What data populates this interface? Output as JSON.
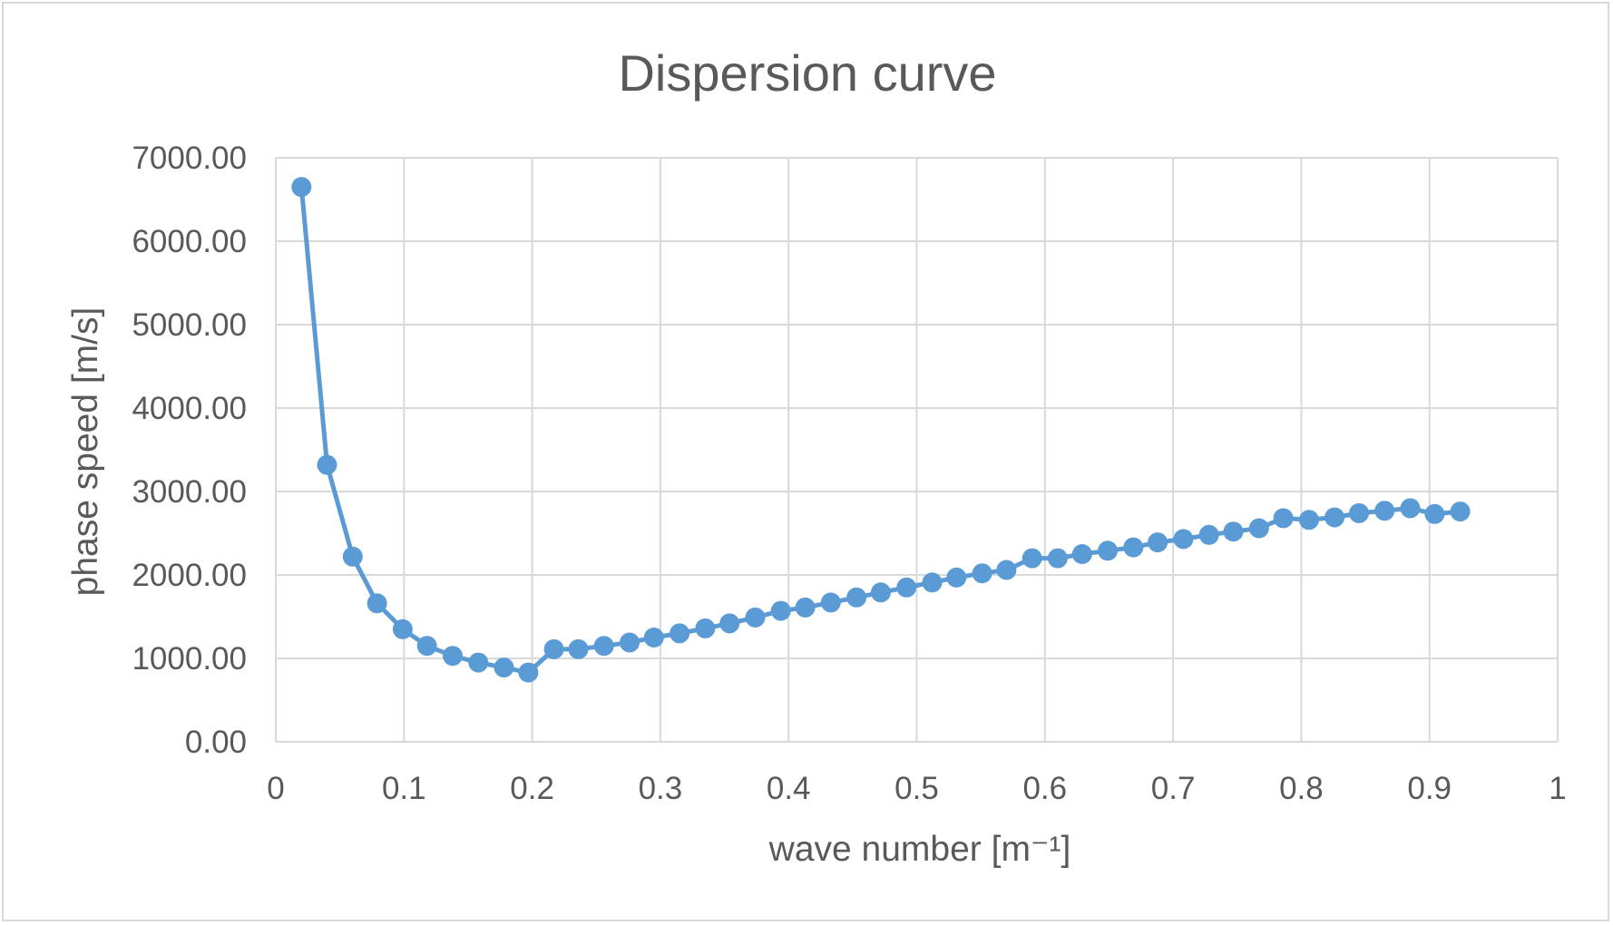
{
  "chart_data": {
    "type": "line",
    "title": "Dispersion curve",
    "xlabel": "wave number [m⁻¹]",
    "ylabel": "phase speed [m/s]",
    "xlim": [
      0,
      1
    ],
    "ylim": [
      0,
      7000
    ],
    "xticks": [
      "0",
      "0.1",
      "0.2",
      "0.3",
      "0.4",
      "0.5",
      "0.6",
      "0.7",
      "0.8",
      "0.9",
      "1"
    ],
    "yticks": [
      "0.00",
      "1000.00",
      "2000.00",
      "3000.00",
      "4000.00",
      "5000.00",
      "6000.00",
      "7000.00"
    ],
    "grid": true,
    "legend": "none",
    "marker": "circle",
    "color": "#5b9bd5",
    "series": [
      {
        "x": [
          0.02,
          0.04,
          0.06,
          0.079,
          0.099,
          0.118,
          0.138,
          0.158,
          0.178,
          0.197,
          0.217,
          0.236,
          0.256,
          0.276,
          0.295,
          0.315,
          0.335,
          0.354,
          0.374,
          0.394,
          0.413,
          0.433,
          0.453,
          0.472,
          0.492,
          0.512,
          0.531,
          0.551,
          0.57,
          0.59,
          0.61,
          0.629,
          0.649,
          0.669,
          0.688,
          0.708,
          0.728,
          0.747,
          0.767,
          0.786,
          0.806,
          0.826,
          0.845,
          0.865,
          0.885,
          0.904,
          0.924
        ],
        "y": [
          6650,
          3320,
          2220,
          1660,
          1350,
          1150,
          1030,
          950,
          890,
          830,
          1110,
          1110,
          1150,
          1190,
          1250,
          1300,
          1360,
          1420,
          1490,
          1570,
          1610,
          1670,
          1730,
          1790,
          1850,
          1910,
          1970,
          2020,
          2060,
          2200,
          2200,
          2250,
          2290,
          2330,
          2390,
          2430,
          2480,
          2520,
          2560,
          2680,
          2660,
          2690,
          2740,
          2770,
          2800,
          2730,
          2760
        ]
      }
    ]
  }
}
